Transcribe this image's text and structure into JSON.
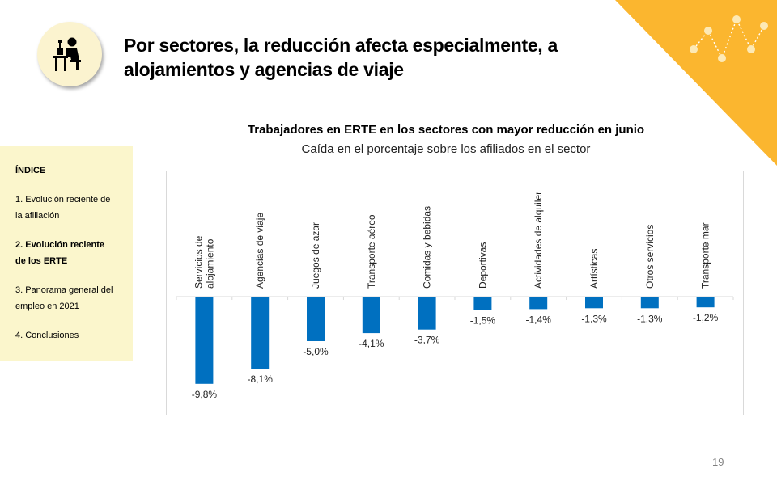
{
  "header": {
    "title": "Por sectores, la reducción afecta especialmente, a alojamientos y agencias de viaje"
  },
  "sidebar": {
    "heading": "ÍNDICE",
    "items": [
      {
        "label": "1. Evolución reciente de la afiliación",
        "active": false
      },
      {
        "label": "2. Evolución reciente de los ERTE",
        "active": true
      },
      {
        "label": "3. Panorama general del empleo en 2021",
        "active": false
      },
      {
        "label": "4. Conclusiones",
        "active": false
      }
    ]
  },
  "icons": {
    "header_icon": "worker-at-desk-icon",
    "decoration": "network-dots-icon"
  },
  "colors": {
    "bar": "#0070c0",
    "accent": "#fbb62f",
    "sidebar_bg": "#fbf6cc"
  },
  "chart_data": {
    "type": "bar",
    "title": "Trabajadores en ERTE en los sectores con mayor reducción en junio",
    "subtitle": "Caída en el porcentaje sobre los afiliados en el sector",
    "categories": [
      "Servicios de alojamiento",
      "Agencias de viaje",
      "Juegos de azar",
      "Transporte aéreo",
      "Comidas y bebidas",
      "Deportivas",
      "Actividades de alquiler",
      "Artísticas",
      "Otros servicios",
      "Transporte mar"
    ],
    "values": [
      -9.8,
      -8.1,
      -5.0,
      -4.1,
      -3.7,
      -1.5,
      -1.4,
      -1.3,
      -1.3,
      -1.2
    ],
    "data_labels": [
      "-9,8%",
      "-8,1%",
      "-5,0%",
      "-4,1%",
      "-3,7%",
      "-1,5%",
      "-1,4%",
      "-1,3%",
      "-1,3%",
      "-1,2%"
    ],
    "ylim": [
      -10,
      0
    ],
    "grid": false,
    "legend": "none"
  },
  "footer": {
    "page_number": "19"
  }
}
